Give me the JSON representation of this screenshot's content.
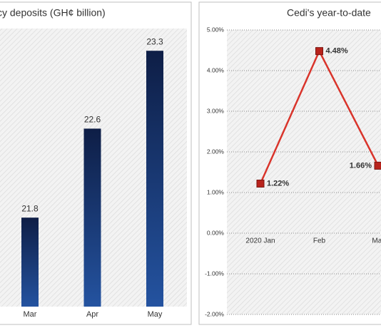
{
  "chart_data": [
    {
      "type": "bar",
      "title": "cy deposits (GH¢ billion)",
      "categories": [
        "Mar",
        "Apr",
        "May"
      ],
      "values": [
        21.8,
        22.6,
        23.3
      ],
      "color": "#2453a0",
      "ylim": [
        21,
        23.5
      ]
    },
    {
      "type": "line",
      "title": "Cedi's year-to-date",
      "categories": [
        "2020 Jan",
        "Feb",
        "Mar"
      ],
      "values": [
        1.22,
        4.48,
        1.66
      ],
      "value_labels": [
        "1.22%",
        "4.48%",
        "1.66%"
      ],
      "color": "#d9342b",
      "marker_color": "#b8231c",
      "ylim": [
        -2,
        5
      ],
      "yticks": [
        {
          "value": -2,
          "label": "-2.00%"
        },
        {
          "value": -1,
          "label": "-1.00%"
        },
        {
          "value": 0,
          "label": "0.00%"
        },
        {
          "value": 1,
          "label": "1.00%"
        },
        {
          "value": 2,
          "label": "2.00%"
        },
        {
          "value": 3,
          "label": "3.00%"
        },
        {
          "value": 4,
          "label": "4.00%"
        },
        {
          "value": 5,
          "label": "5.00%"
        }
      ],
      "grid": true
    }
  ]
}
